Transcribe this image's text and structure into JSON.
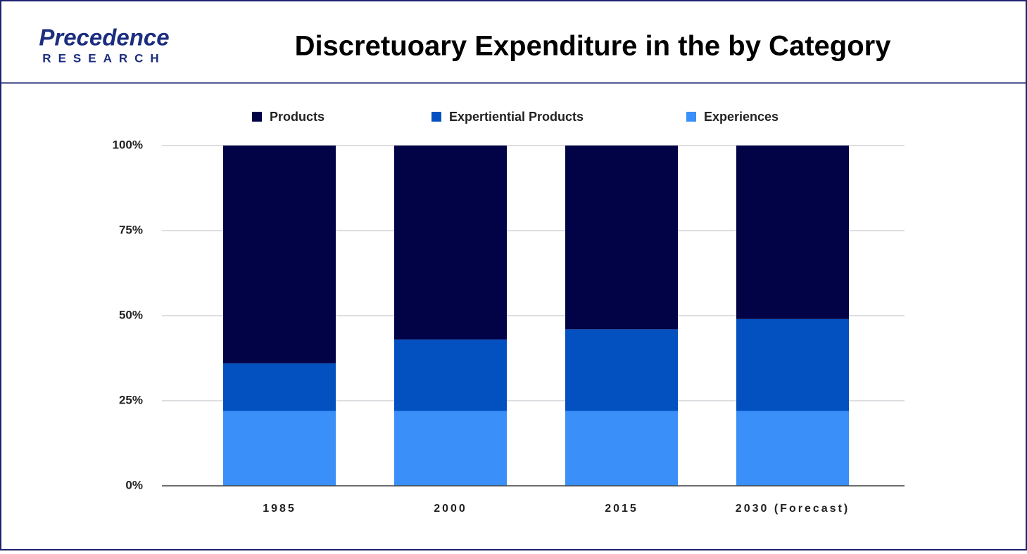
{
  "logo": {
    "name": "Precedence",
    "sub": "RESEARCH"
  },
  "chart_data": {
    "type": "stacked_bar_100",
    "title": "Discretuoary Expenditure in the by Category",
    "categories": [
      "1985",
      "2000",
      "2015",
      "2030 (Forecast)"
    ],
    "series": [
      {
        "name": "Products",
        "color": "#020347",
        "values": [
          64,
          57,
          54,
          51
        ]
      },
      {
        "name": "Expertiential Products",
        "color": "#0350c0",
        "values": [
          14,
          21,
          24,
          27
        ]
      },
      {
        "name": "Experiences",
        "color": "#3a8ff8",
        "values": [
          22,
          22,
          22,
          22
        ]
      }
    ],
    "ylim": [
      0,
      100
    ],
    "yticks": [
      {
        "value": 0,
        "label": "0%"
      },
      {
        "value": 25,
        "label": "25%"
      },
      {
        "value": 50,
        "label": "50%"
      },
      {
        "value": 75,
        "label": "75%"
      },
      {
        "value": 100,
        "label": "100%"
      }
    ],
    "grid": true,
    "legend": "top"
  }
}
